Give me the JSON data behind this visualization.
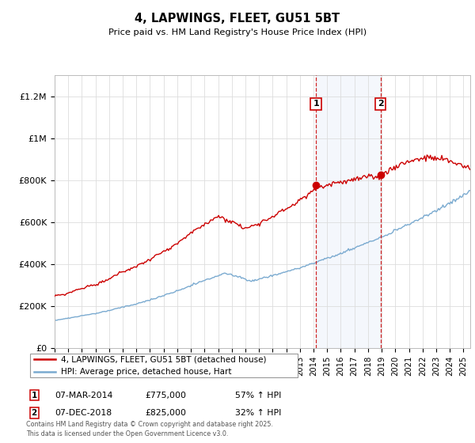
{
  "title": "4, LAPWINGS, FLEET, GU51 5BT",
  "subtitle": "Price paid vs. HM Land Registry's House Price Index (HPI)",
  "ylabel_ticks": [
    "£0",
    "£200K",
    "£400K",
    "£600K",
    "£800K",
    "£1M",
    "£1.2M"
  ],
  "ytick_values": [
    0,
    200000,
    400000,
    600000,
    800000,
    1000000,
    1200000
  ],
  "ylim": [
    0,
    1300000
  ],
  "xlim_start": 1995.0,
  "xlim_end": 2025.5,
  "red_line_color": "#cc0000",
  "blue_line_color": "#7aaad0",
  "marker1_date": 2014.18,
  "marker2_date": 2018.92,
  "marker1_price": 775000,
  "marker2_price": 825000,
  "marker1_label": "07-MAR-2014",
  "marker2_label": "07-DEC-2018",
  "marker1_hpi": "57% ↑ HPI",
  "marker2_hpi": "32% ↑ HPI",
  "legend_red": "4, LAPWINGS, FLEET, GU51 5BT (detached house)",
  "legend_blue": "HPI: Average price, detached house, Hart",
  "footnote": "Contains HM Land Registry data © Crown copyright and database right 2025.\nThis data is licensed under the Open Government Licence v3.0.",
  "background_shading_start": 2014.18,
  "background_shading_end": 2018.92
}
